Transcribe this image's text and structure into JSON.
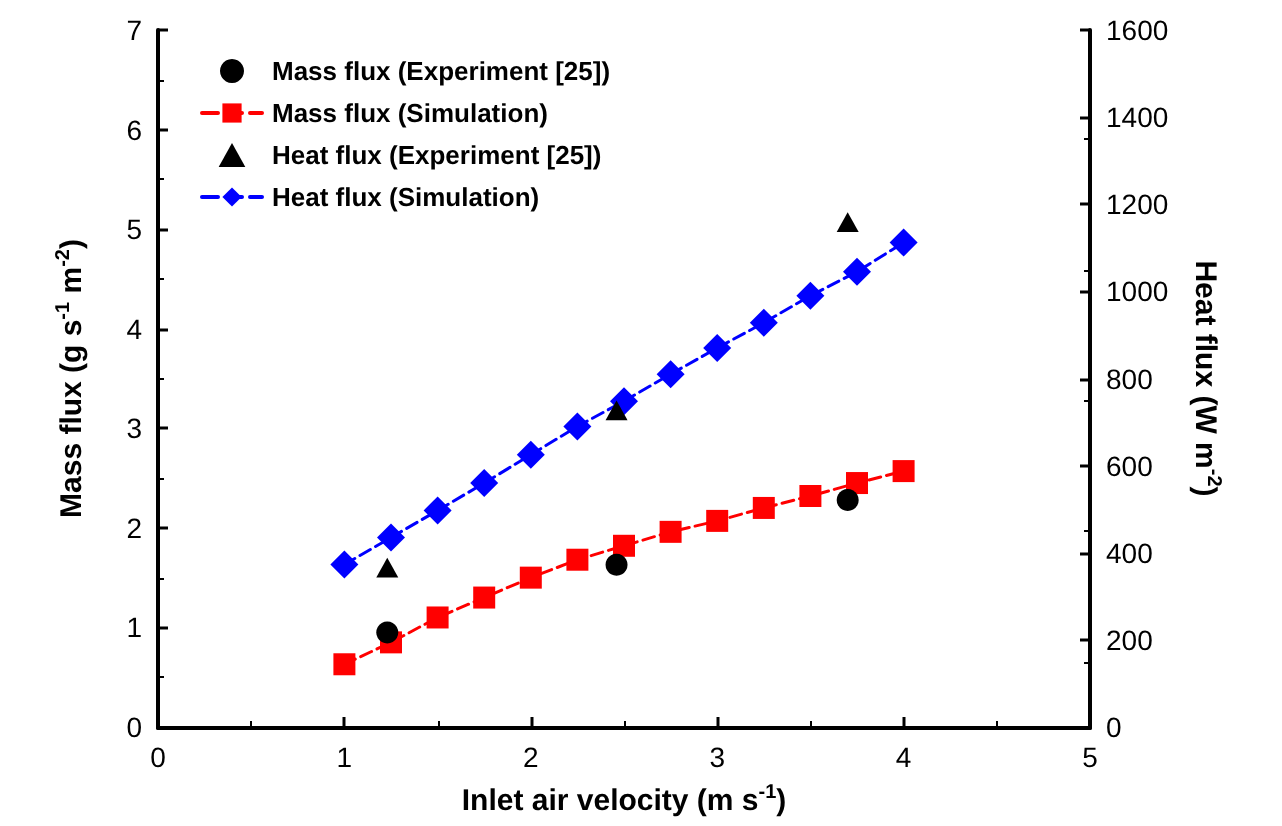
{
  "chart_data": {
    "type": "line",
    "xlabel": "Inlet air velocity (m s$^{-1}$)",
    "ylabel": "Mass flux (g s$^{-1}$ m$^{-2}$)",
    "y2label": "Heat flux (W m$^{-2}$)",
    "xlim": [
      0,
      5
    ],
    "xticks": [
      0,
      1,
      2,
      3,
      4,
      5
    ],
    "ylim": [
      0,
      7
    ],
    "yticks": [
      0,
      1,
      2,
      3,
      4,
      5,
      6,
      7
    ],
    "y2lim": [
      0,
      1600
    ],
    "y2ticks": [
      0,
      200,
      400,
      600,
      800,
      1000,
      1200,
      1400,
      1600
    ],
    "grid": false,
    "legend": "top left",
    "series": [
      {
        "name": "Mass flux (Experiment [25])",
        "type": "scatter",
        "marker": "circle",
        "color": "#000000",
        "x": [
          1.23,
          2.46,
          3.7
        ],
        "values": [
          0.95,
          1.63,
          2.28
        ]
      },
      {
        "name": "Mass flux (Simulation)",
        "marker": "square",
        "line_style": "dashed",
        "color": "#ff0000",
        "x": [
          1,
          1.25,
          1.5,
          1.75,
          2,
          2.25,
          2.5,
          2.75,
          3,
          3.25,
          3.5,
          3.75,
          4
        ],
        "values": [
          0.63,
          0.85,
          1.1,
          1.3,
          1.5,
          1.68,
          1.82,
          1.96,
          2.07,
          2.2,
          2.32,
          2.45,
          2.57
        ]
      },
      {
        "name": "Heat flux (Experiment [25])",
        "type": "scatter",
        "marker": "triangle",
        "color": "#000000",
        "axis": "y2",
        "x": [
          1.23,
          2.46,
          3.7
        ],
        "values": [
          366,
          727,
          1159
        ]
      },
      {
        "name": "Heat flux (Simulation)",
        "marker": "diamond",
        "line_style": "dashed",
        "color": "#0000ff",
        "axis": "y2",
        "x": [
          1,
          1.25,
          1.5,
          1.75,
          2,
          2.25,
          2.5,
          2.75,
          3,
          3.25,
          3.5,
          3.75,
          4
        ],
        "values": [
          373,
          435,
          497,
          560,
          625,
          690,
          748,
          810,
          870,
          928,
          990,
          1045,
          1112
        ]
      }
    ]
  }
}
